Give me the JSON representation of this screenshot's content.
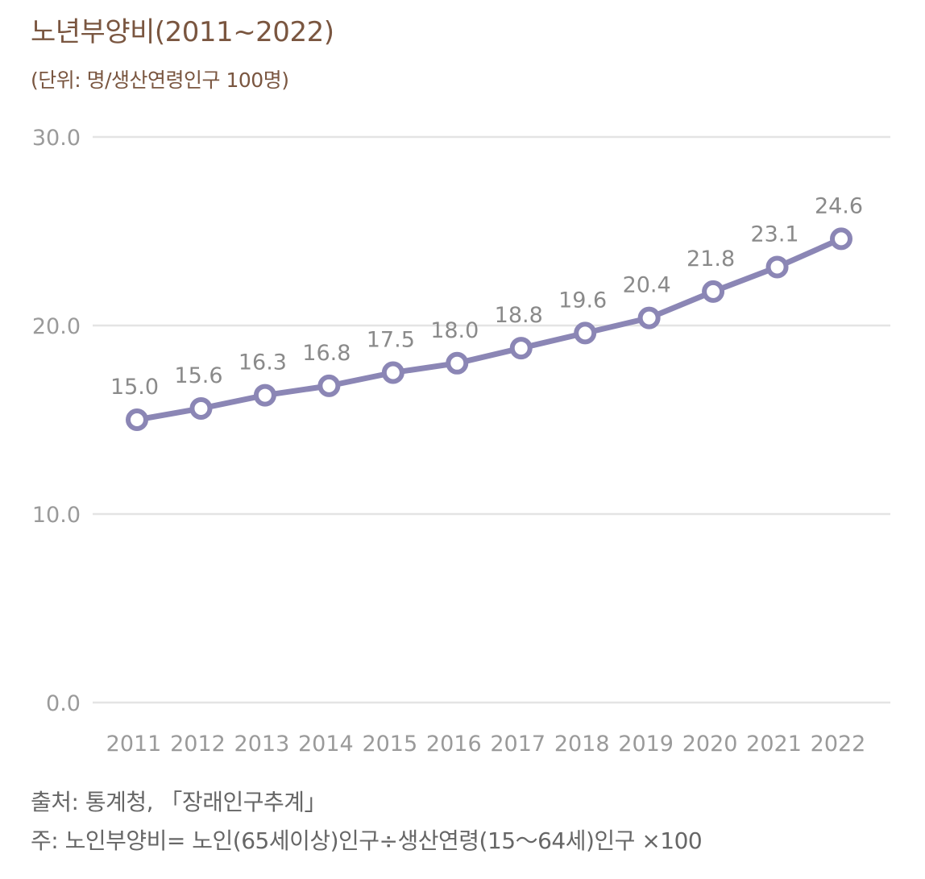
{
  "title": "노년부양비(2011~2022)",
  "unit_label": "(단위: 명/생산연령인구 100명)",
  "notes": {
    "source": "출처: 통계청, 「장래인구추계」",
    "note": "주: 노인부양비= 노인(65세이상)인구÷생산연령(15～64세)인구 ×100"
  },
  "colors": {
    "line": "#8b86b5",
    "marker_fill": "#ffffff",
    "grid": "#e4e4e4",
    "axis_text": "#9a9a9a",
    "label_text": "#8a8a8a",
    "title_text": "#7a5640"
  },
  "chart_data": {
    "type": "line",
    "title": "노년부양비(2011~2022)",
    "categories": [
      "2011",
      "2012",
      "2013",
      "2014",
      "2015",
      "2016",
      "2017",
      "2018",
      "2019",
      "2020",
      "2021",
      "2022"
    ],
    "values": [
      15.0,
      15.6,
      16.3,
      16.8,
      17.5,
      18.0,
      18.8,
      19.6,
      20.4,
      21.8,
      23.1,
      24.6
    ],
    "value_labels": [
      "15.0",
      "15.6",
      "16.3",
      "16.8",
      "17.5",
      "18.0",
      "18.8",
      "19.6",
      "20.4",
      "21.8",
      "23.1",
      "24.6"
    ],
    "ylim": [
      0,
      30
    ],
    "yticks": [
      0,
      10,
      20,
      30
    ],
    "ytick_labels": [
      "0.0",
      "10.0",
      "20.0",
      "30.0"
    ],
    "grid": true,
    "legend": "none",
    "xlabel": "",
    "ylabel": ""
  }
}
